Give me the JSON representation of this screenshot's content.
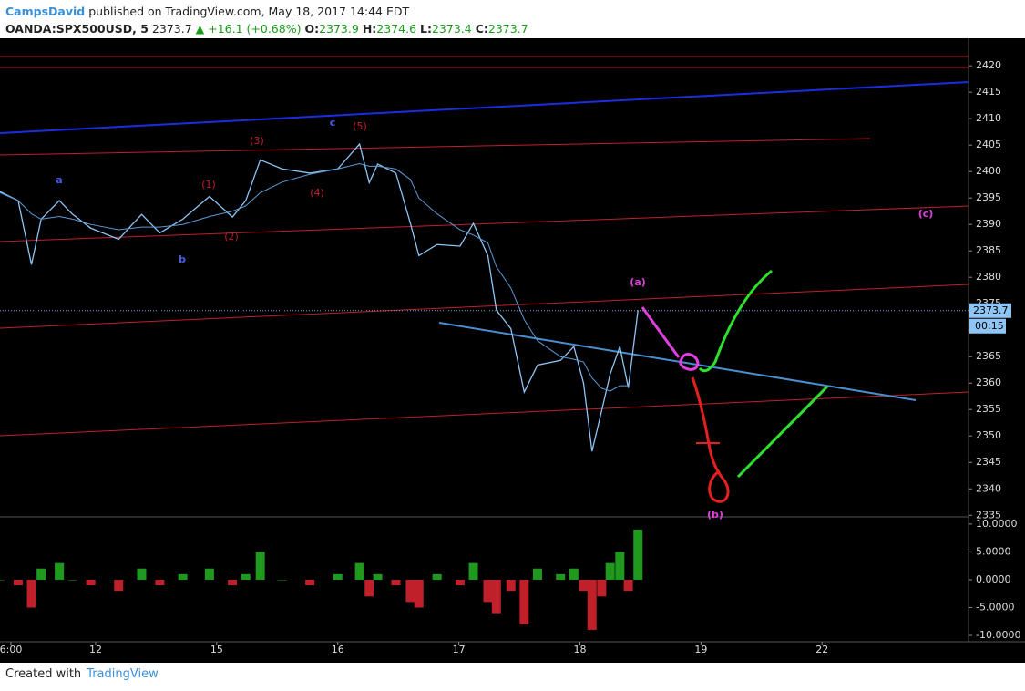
{
  "header": {
    "user": "CampsDavid",
    "published": "published on TradingView.com, May 18, 2017 14:44 EDT",
    "symbol": "OANDA:SPX500USD, 5",
    "last": "2373.7",
    "change": "▲ +16.1 (+0.68%)",
    "open_label": "O:",
    "open": "2373.9",
    "high_label": "H:",
    "high": "2374.6",
    "low_label": "L:",
    "low": "2373.4",
    "close_label": "C:",
    "close": "2373.7"
  },
  "footer": {
    "created": "Created with",
    "brand": "TradingView"
  },
  "chart_data": [
    {
      "type": "line",
      "x": [
        0.21,
        0.36,
        0.47,
        0.55,
        0.7,
        0.81,
        0.96,
        1.19,
        1.38,
        1.53,
        1.72,
        1.94,
        2.13,
        2.24,
        2.36,
        2.54,
        2.77,
        3.0,
        3.18,
        3.26,
        3.33,
        3.48,
        3.6,
        3.67,
        3.82,
        4.01,
        4.12,
        4.24,
        4.31,
        4.43,
        4.54,
        4.65,
        4.84,
        4.95,
        5.03,
        5.1,
        5.18,
        5.25,
        5.33,
        5.4,
        5.48
      ],
      "series": [
        {
          "color": "#8ec5f5",
          "values": [
            2396.2,
            2394.5,
            2382.4,
            2391.0,
            2394.5,
            2391.9,
            2389.3,
            2387.2,
            2391.9,
            2388.4,
            2391.0,
            2395.3,
            2391.4,
            2394.5,
            2402.2,
            2400.5,
            2399.7,
            2400.5,
            2405.2,
            2397.9,
            2401.4,
            2399.7,
            2390.2,
            2384.1,
            2386.2,
            2385.9,
            2390.2,
            2384.1,
            2373.8,
            2370.3,
            2358.3,
            2363.4,
            2364.3,
            2366.9,
            2360.0,
            2347.1,
            2354.8,
            2361.7,
            2366.9,
            2359.1,
            2373.8
          ]
        },
        {
          "color": "#5a9ad6",
          "values": [
            2396.0,
            2394.5,
            2392.0,
            2391.0,
            2391.5,
            2391.0,
            2390.0,
            2389.0,
            2389.5,
            2389.5,
            2390.0,
            2391.5,
            2392.5,
            2393.5,
            2396.0,
            2398.0,
            2399.5,
            2400.5,
            2401.5,
            2401.0,
            2401.0,
            2400.5,
            2398.5,
            2395.0,
            2392.0,
            2389.0,
            2388.0,
            2386.5,
            2382.0,
            2378.0,
            2372.0,
            2368.0,
            2365.0,
            2364.5,
            2364.0,
            2361.0,
            2359.0,
            2358.5,
            2359.5,
            2359.5,
            null
          ]
        }
      ],
      "xlim": [
        0.21,
        8.21
      ],
      "xticks": [
        {
          "value": 0.3,
          "label": "6:00"
        },
        {
          "value": 1,
          "label": "12"
        },
        {
          "value": 2,
          "label": "15"
        },
        {
          "value": 3,
          "label": "16"
        },
        {
          "value": 4,
          "label": "17"
        },
        {
          "value": 5,
          "label": "18"
        },
        {
          "value": 6,
          "label": "19"
        },
        {
          "value": 7,
          "label": "22"
        }
      ],
      "ylim": [
        2334.7,
        2425.2
      ],
      "yticks": [
        2335,
        2340,
        2345,
        2350,
        2355,
        2360,
        2365,
        2370,
        2375,
        2380,
        2385,
        2390,
        2395,
        2400,
        2405,
        2410,
        2415,
        2420
      ],
      "last_price": 2373.7,
      "last_label": "2373.7",
      "countdown": "00:15",
      "annotations": [
        {
          "text": "a",
          "color": "#4a5cf0"
        },
        {
          "text": "b",
          "color": "#4a5cf0"
        },
        {
          "text": "c",
          "color": "#4a5cf0"
        },
        {
          "text": "(1)",
          "color": "#c0202a"
        },
        {
          "text": "(2)",
          "color": "#c0202a"
        },
        {
          "text": "(3)",
          "color": "#c0202a"
        },
        {
          "text": "(4)",
          "color": "#c0202a"
        },
        {
          "text": "(5)",
          "color": "#c0202a"
        },
        {
          "text": "(a)",
          "color": "#e040e0"
        },
        {
          "text": "(b)",
          "color": "#e040e0"
        },
        {
          "text": "(c)",
          "color": "#e040e0"
        }
      ]
    },
    {
      "type": "bar",
      "values": [
        0,
        -1,
        -5,
        2,
        3,
        0,
        -1,
        -2,
        2,
        -1,
        1,
        2,
        -1,
        1,
        5,
        0,
        -1,
        1,
        3,
        -3,
        1,
        -1,
        -4,
        -5,
        1,
        -1,
        3,
        -4,
        -6,
        -2,
        -8,
        2,
        1,
        2,
        -2,
        -9,
        -3,
        3,
        5,
        -2,
        9
      ],
      "up_color": "#1f9a1f",
      "down_color": "#c0202a",
      "ylim": [
        -11.3,
        10.8
      ],
      "yticks": [
        {
          "value": 10,
          "label": "10.0000"
        },
        {
          "value": 5,
          "label": "5.0000"
        },
        {
          "value": 0,
          "label": "0.0000"
        },
        {
          "value": -5,
          "label": "-5.0000"
        },
        {
          "value": -10,
          "label": "-10.0000"
        }
      ]
    }
  ]
}
